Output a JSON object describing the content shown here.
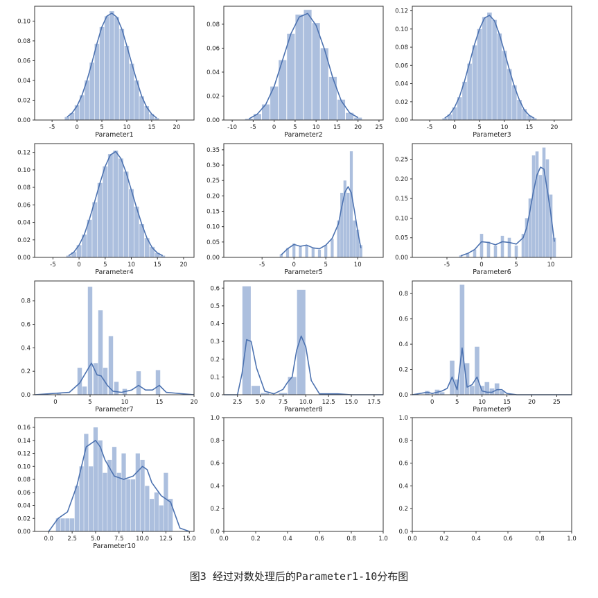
{
  "caption": "图3 经过对数处理后的Parameter1-10分布图",
  "colors": {
    "bar": "#a8bcdc",
    "kde": "#4c72b0",
    "axis": "#333333"
  },
  "chart_data": [
    {
      "type": "bar",
      "xlabel": "Parameter1",
      "xlim": [
        -8.5,
        23.5
      ],
      "ylim": [
        0,
        0.115
      ],
      "xticks": [
        -5,
        0,
        5,
        10,
        15,
        20
      ],
      "yticks": [
        0.0,
        0.02,
        0.04,
        0.06,
        0.08,
        0.1
      ],
      "x": [
        -2,
        -1,
        0,
        1,
        2,
        3,
        4,
        5,
        6,
        7,
        8,
        9,
        10,
        11,
        12,
        13,
        14,
        15,
        16
      ],
      "values": [
        0.003,
        0.007,
        0.015,
        0.025,
        0.04,
        0.058,
        0.077,
        0.094,
        0.105,
        0.11,
        0.104,
        0.092,
        0.075,
        0.057,
        0.04,
        0.024,
        0.014,
        0.006,
        0.002
      ],
      "kde": [
        0.003,
        0.007,
        0.014,
        0.025,
        0.04,
        0.058,
        0.077,
        0.094,
        0.105,
        0.108,
        0.104,
        0.092,
        0.075,
        0.057,
        0.04,
        0.024,
        0.013,
        0.006,
        0.002
      ]
    },
    {
      "type": "bar",
      "xlabel": "Parameter2",
      "xlim": [
        -12,
        26
      ],
      "ylim": [
        0,
        0.095
      ],
      "xticks": [
        -10,
        -5,
        0,
        5,
        10,
        15,
        20,
        25
      ],
      "yticks": [
        0.0,
        0.02,
        0.04,
        0.06,
        0.08
      ],
      "x": [
        -6,
        -4,
        -2,
        0,
        2,
        4,
        6,
        8,
        10,
        12,
        14,
        16,
        18,
        20
      ],
      "values": [
        0.001,
        0.005,
        0.013,
        0.028,
        0.05,
        0.072,
        0.088,
        0.092,
        0.081,
        0.06,
        0.036,
        0.017,
        0.006,
        0.002
      ],
      "kde": [
        0.001,
        0.005,
        0.013,
        0.028,
        0.05,
        0.072,
        0.086,
        0.089,
        0.079,
        0.059,
        0.035,
        0.016,
        0.006,
        0.002
      ]
    },
    {
      "type": "bar",
      "xlabel": "Parameter3",
      "xlim": [
        -8.5,
        23.5
      ],
      "ylim": [
        0,
        0.125
      ],
      "xticks": [
        -5,
        0,
        5,
        10,
        15,
        20
      ],
      "yticks": [
        0.0,
        0.02,
        0.04,
        0.06,
        0.08,
        0.1,
        0.12
      ],
      "x": [
        -2,
        -1,
        0,
        1,
        2,
        3,
        4,
        5,
        6,
        7,
        8,
        9,
        10,
        11,
        12,
        13,
        14,
        15,
        16
      ],
      "values": [
        0.002,
        0.006,
        0.014,
        0.025,
        0.042,
        0.062,
        0.082,
        0.1,
        0.113,
        0.118,
        0.11,
        0.095,
        0.076,
        0.056,
        0.038,
        0.022,
        0.012,
        0.005,
        0.002
      ],
      "kde": [
        0.002,
        0.006,
        0.014,
        0.026,
        0.043,
        0.063,
        0.083,
        0.1,
        0.112,
        0.115,
        0.109,
        0.094,
        0.075,
        0.055,
        0.037,
        0.022,
        0.011,
        0.005,
        0.002
      ]
    },
    {
      "type": "bar",
      "xlabel": "Parameter4",
      "xlim": [
        -8.5,
        22
      ],
      "ylim": [
        0,
        0.13
      ],
      "xticks": [
        -5,
        0,
        5,
        10,
        15,
        20
      ],
      "yticks": [
        0.0,
        0.02,
        0.04,
        0.06,
        0.08,
        0.1,
        0.12
      ],
      "x": [
        -2,
        -1,
        0,
        1,
        2,
        3,
        4,
        5,
        6,
        7,
        8,
        9,
        10,
        11,
        12,
        13,
        14,
        15,
        16
      ],
      "values": [
        0.002,
        0.006,
        0.014,
        0.026,
        0.043,
        0.063,
        0.085,
        0.104,
        0.118,
        0.122,
        0.113,
        0.098,
        0.078,
        0.058,
        0.038,
        0.022,
        0.012,
        0.005,
        0.002
      ],
      "kde": [
        0.002,
        0.006,
        0.014,
        0.026,
        0.044,
        0.064,
        0.085,
        0.104,
        0.117,
        0.121,
        0.113,
        0.097,
        0.077,
        0.057,
        0.038,
        0.022,
        0.011,
        0.005,
        0.002
      ]
    },
    {
      "type": "bar",
      "xlabel": "Parameter5",
      "xlim": [
        -11,
        14
      ],
      "ylim": [
        0,
        0.37
      ],
      "xticks": [
        -5,
        0,
        5,
        10
      ],
      "yticks": [
        0.0,
        0.05,
        0.1,
        0.15,
        0.2,
        0.25,
        0.3,
        0.35
      ],
      "x": [
        -2,
        -1,
        0,
        1,
        2,
        3,
        4,
        5,
        6,
        7,
        7.5,
        8,
        8.5,
        9,
        9.5,
        10,
        10.5
      ],
      "values": [
        0.01,
        0.03,
        0.045,
        0.035,
        0.04,
        0.03,
        0.025,
        0.04,
        0.06,
        0.12,
        0.21,
        0.25,
        0.21,
        0.345,
        0.12,
        0.09,
        0.04
      ],
      "kde": [
        0.008,
        0.028,
        0.042,
        0.036,
        0.04,
        0.031,
        0.028,
        0.04,
        0.062,
        0.11,
        0.165,
        0.212,
        0.23,
        0.21,
        0.15,
        0.085,
        0.03
      ]
    },
    {
      "type": "bar",
      "xlabel": "Parameter6",
      "xlim": [
        -10,
        13
      ],
      "ylim": [
        0,
        0.29
      ],
      "xticks": [
        -5,
        0,
        5,
        10
      ],
      "yticks": [
        0.0,
        0.05,
        0.1,
        0.15,
        0.2,
        0.25
      ],
      "x": [
        -3,
        -2,
        -1,
        0,
        1,
        2,
        3,
        4,
        5,
        6,
        6.5,
        7,
        7.5,
        8,
        8.5,
        9,
        9.5,
        10,
        10.5
      ],
      "values": [
        0.005,
        0.01,
        0.02,
        0.06,
        0.04,
        0.03,
        0.055,
        0.05,
        0.03,
        0.06,
        0.1,
        0.15,
        0.26,
        0.27,
        0.21,
        0.28,
        0.25,
        0.16,
        0.05
      ],
      "kde": [
        0.004,
        0.01,
        0.02,
        0.04,
        0.038,
        0.032,
        0.04,
        0.038,
        0.034,
        0.05,
        0.075,
        0.12,
        0.17,
        0.21,
        0.23,
        0.225,
        0.17,
        0.11,
        0.04
      ]
    },
    {
      "type": "bar",
      "xlabel": "Parameter7",
      "xlim": [
        -3,
        20
      ],
      "ylim": [
        0,
        0.97
      ],
      "xticks": [
        0,
        5,
        10,
        15,
        20
      ],
      "yticks": [
        0.0,
        0.2,
        0.4,
        0.6,
        0.8
      ],
      "x": [
        0.5,
        3.5,
        4.2,
        5,
        5.8,
        6.5,
        7.2,
        8,
        8.8,
        10,
        12,
        14.8
      ],
      "values": [
        0.01,
        0.23,
        0.07,
        0.92,
        0.27,
        0.72,
        0.23,
        0.5,
        0.11,
        0.05,
        0.2,
        0.21
      ],
      "kde_x": [
        -3,
        2,
        3.5,
        4.5,
        5.2,
        6,
        6.6,
        7.5,
        8.3,
        9.5,
        11,
        12,
        13,
        14,
        15,
        16,
        20
      ],
      "kde": [
        0.0,
        0.02,
        0.1,
        0.2,
        0.27,
        0.17,
        0.16,
        0.08,
        0.03,
        0.02,
        0.04,
        0.08,
        0.04,
        0.04,
        0.08,
        0.02,
        0.0
      ]
    },
    {
      "type": "bar",
      "xlabel": "Parameter8",
      "xlim": [
        1,
        18.5
      ],
      "ylim": [
        0,
        0.64
      ],
      "xticks": [
        2.5,
        5.0,
        7.5,
        10.0,
        12.5,
        15.0,
        17.5
      ],
      "yticks": [
        0.0,
        0.1,
        0.2,
        0.3,
        0.4,
        0.5,
        0.6
      ],
      "x": [
        3.5,
        4.5,
        5.5,
        7.5,
        8.5,
        9.5,
        13.5
      ],
      "values": [
        0.61,
        0.05,
        0.01,
        0.01,
        0.1,
        0.59,
        0.005
      ],
      "kde_x": [
        1,
        2.5,
        3,
        3.5,
        4,
        4.6,
        5.5,
        6.5,
        7.5,
        8,
        8.5,
        9,
        9.5,
        10,
        10.6,
        11.5,
        13.5,
        15,
        18.5
      ],
      "kde": [
        0.0,
        0.0,
        0.12,
        0.31,
        0.3,
        0.15,
        0.02,
        0.005,
        0.03,
        0.07,
        0.1,
        0.25,
        0.33,
        0.27,
        0.08,
        0.005,
        0.005,
        0.0,
        0.0
      ]
    },
    {
      "type": "bar",
      "xlabel": "Parameter9",
      "xlim": [
        -4,
        28
      ],
      "ylim": [
        0,
        0.9
      ],
      "xticks": [
        0,
        5,
        10,
        15,
        20,
        25
      ],
      "yticks": [
        0.0,
        0.2,
        0.4,
        0.6,
        0.8
      ],
      "x": [
        -1,
        1,
        2,
        4,
        5,
        6,
        7,
        8,
        9,
        10,
        11,
        12,
        13,
        14
      ],
      "values": [
        0.03,
        0.04,
        0.02,
        0.27,
        0.12,
        0.87,
        0.25,
        0.07,
        0.38,
        0.07,
        0.1,
        0.05,
        0.09,
        0.03
      ],
      "kde_x": [
        -4,
        -1,
        0,
        1,
        2,
        3,
        4,
        5,
        6,
        7,
        8,
        9,
        10,
        11,
        12,
        13,
        14,
        15,
        17,
        28
      ],
      "kde": [
        0.0,
        0.02,
        0.01,
        0.02,
        0.03,
        0.05,
        0.14,
        0.04,
        0.37,
        0.06,
        0.08,
        0.14,
        0.03,
        0.02,
        0.02,
        0.04,
        0.04,
        0.01,
        0.0,
        0.0
      ]
    },
    {
      "type": "bar",
      "xlabel": "Parameter10",
      "xlim": [
        -1.5,
        15.5
      ],
      "ylim": [
        0,
        0.175
      ],
      "xticks": [
        0.0,
        2.5,
        5.0,
        7.5,
        10.0,
        12.5,
        15.0
      ],
      "yticks": [
        0.0,
        0.02,
        0.04,
        0.06,
        0.08,
        0.1,
        0.12,
        0.14,
        0.16
      ],
      "x": [
        1,
        1.5,
        2,
        2.5,
        3,
        3.5,
        4,
        4.5,
        5,
        5.5,
        6,
        6.5,
        7,
        7.5,
        8,
        8.5,
        9,
        9.5,
        10,
        10.5,
        11,
        11.5,
        12,
        12.5,
        13
      ],
      "values": [
        0.02,
        0.02,
        0.02,
        0.02,
        0.07,
        0.1,
        0.15,
        0.1,
        0.16,
        0.14,
        0.09,
        0.11,
        0.13,
        0.09,
        0.12,
        0.08,
        0.08,
        0.12,
        0.11,
        0.07,
        0.05,
        0.06,
        0.04,
        0.09,
        0.05
      ],
      "kde_x": [
        0,
        1,
        2,
        3,
        4,
        5,
        5.5,
        6,
        7,
        8,
        9,
        10,
        10.5,
        11,
        12,
        13,
        14,
        15
      ],
      "kde": [
        0.0,
        0.02,
        0.03,
        0.07,
        0.13,
        0.14,
        0.13,
        0.11,
        0.085,
        0.08,
        0.085,
        0.1,
        0.095,
        0.075,
        0.055,
        0.045,
        0.005,
        0.0
      ]
    },
    {
      "type": "empty",
      "xlabel": "",
      "xlim": [
        0,
        1
      ],
      "ylim": [
        0,
        1
      ],
      "xticks": [
        0.0,
        0.2,
        0.4,
        0.6,
        0.8,
        1.0
      ],
      "yticks": [
        0.0,
        0.2,
        0.4,
        0.6,
        0.8,
        1.0
      ]
    },
    {
      "type": "empty",
      "xlabel": "",
      "xlim": [
        0,
        1
      ],
      "ylim": [
        0,
        1
      ],
      "xticks": [
        0.0,
        0.2,
        0.4,
        0.6,
        0.8,
        1.0
      ],
      "yticks": [
        0.0,
        0.2,
        0.4,
        0.6,
        0.8,
        1.0
      ]
    }
  ]
}
